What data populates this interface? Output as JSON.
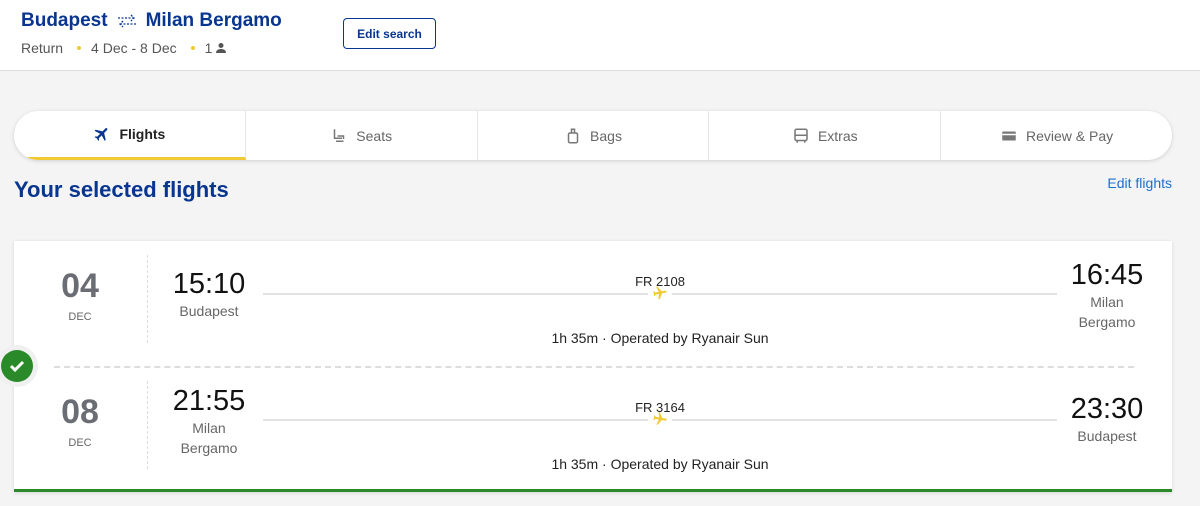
{
  "header": {
    "origin": "Budapest",
    "destination": "Milan Bergamo",
    "trip_type": "Return",
    "dates": "4 Dec - 8 Dec",
    "passengers": "1",
    "edit_search": "Edit search"
  },
  "stepper": [
    {
      "label": "Flights",
      "icon": "plane-icon",
      "active": true
    },
    {
      "label": "Seats",
      "icon": "seat-icon"
    },
    {
      "label": "Bags",
      "icon": "bag-icon"
    },
    {
      "label": "Extras",
      "icon": "bus-icon"
    },
    {
      "label": "Review & Pay",
      "icon": "card-icon"
    }
  ],
  "main": {
    "title": "Your selected flights",
    "edit_flights": "Edit flights"
  },
  "flights": [
    {
      "day": "04",
      "month": "DEC",
      "dep_time": "15:10",
      "dep_city": "Budapest",
      "flight_no": "FR 2108",
      "info": "1h 35m · Operated by Ryanair Sun",
      "arr_time": "16:45",
      "arr_city": "Milan Bergamo"
    },
    {
      "day": "08",
      "month": "DEC",
      "dep_time": "21:55",
      "dep_city": "Milan Bergamo",
      "flight_no": "FR 3164",
      "info": "1h 35m · Operated by Ryanair Sun",
      "arr_time": "23:30",
      "arr_city": "Budapest"
    }
  ],
  "colors": {
    "brand": "#073590",
    "accent": "#f1c933",
    "success": "#2a8a2a"
  }
}
